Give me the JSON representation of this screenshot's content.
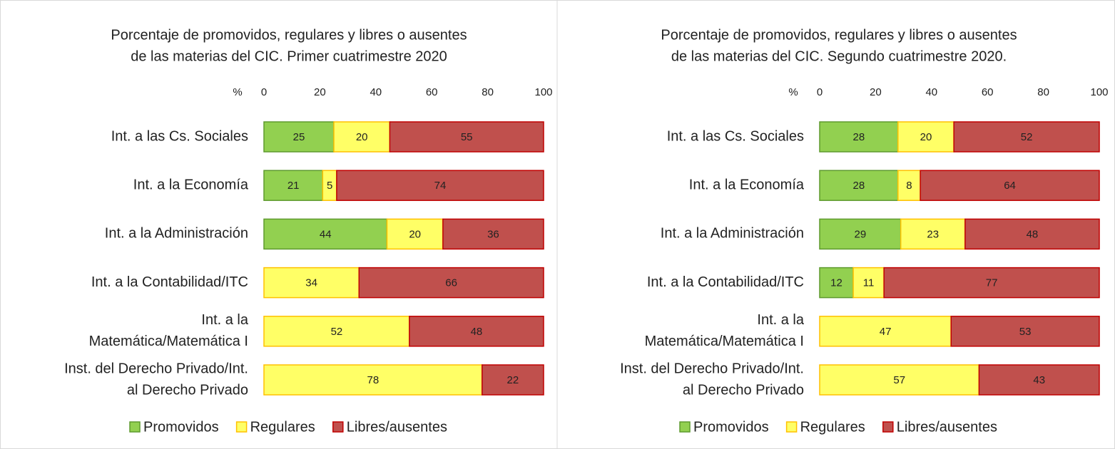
{
  "chart_data": [
    {
      "type": "bar",
      "orientation": "horizontal",
      "stacked": true,
      "title": [
        "Porcentaje de promovidos, regulares y libres o ausentes",
        "de las materias del CIC. Primer cuatrimestre 2020"
      ],
      "xlabel": "%",
      "categories": [
        [
          "Int. a las Cs. Sociales"
        ],
        [
          "Int. a la Economía"
        ],
        [
          "Int. a la Administración"
        ],
        [
          "Int. a la Contabilidad/ITC"
        ],
        [
          "Int. a la",
          "Matemática/Matemática I"
        ],
        [
          "Inst. del Derecho Privado/Int.",
          "al Derecho Privado"
        ]
      ],
      "series": [
        {
          "name": "Promovidos",
          "color": "#92d050",
          "edge": "#5e9a2e",
          "values": [
            25,
            21,
            44,
            null,
            null,
            null
          ]
        },
        {
          "name": "Regulares",
          "color": "#ffff66",
          "edge": "#ffc000",
          "values": [
            20,
            5,
            20,
            34,
            52,
            78
          ]
        },
        {
          "name": "Libres/ausentes",
          "color": "#c0504d",
          "edge": "#c00000",
          "values": [
            55,
            74,
            36,
            66,
            48,
            22
          ]
        }
      ],
      "xlim": [
        0,
        100
      ],
      "xticks": [
        0,
        20,
        40,
        60,
        80,
        100
      ],
      "legend": "bottom"
    },
    {
      "type": "bar",
      "orientation": "horizontal",
      "stacked": true,
      "title": [
        "Porcentaje de promovidos, regulares y libres o ausentes",
        "de las materias del CIC. Segundo cuatrimestre 2020."
      ],
      "xlabel": "%",
      "categories": [
        [
          "Int. a las Cs. Sociales"
        ],
        [
          "Int. a la Economía"
        ],
        [
          "Int. a la Administración"
        ],
        [
          "Int. a la Contabilidad/ITC"
        ],
        [
          "Int. a la",
          "Matemática/Matemática I"
        ],
        [
          "Inst. del Derecho Privado/Int.",
          "al Derecho Privado"
        ]
      ],
      "series": [
        {
          "name": "Promovidos",
          "color": "#92d050",
          "edge": "#5e9a2e",
          "values": [
            28,
            28,
            29,
            12,
            null,
            null
          ]
        },
        {
          "name": "Regulares",
          "color": "#ffff66",
          "edge": "#ffc000",
          "values": [
            20,
            8,
            23,
            11,
            47,
            57
          ]
        },
        {
          "name": "Libres/ausentes",
          "color": "#c0504d",
          "edge": "#c00000",
          "values": [
            52,
            64,
            48,
            77,
            53,
            43
          ]
        }
      ],
      "xlim": [
        0,
        100
      ],
      "xticks": [
        0,
        20,
        40,
        60,
        80,
        100
      ],
      "legend": "bottom"
    }
  ]
}
